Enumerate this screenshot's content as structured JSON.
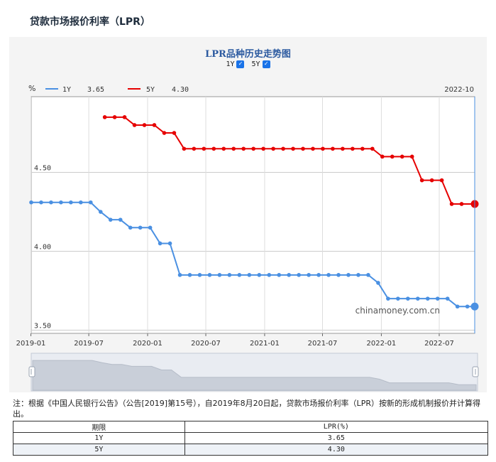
{
  "page_title": "贷款市场报价利率（LPR）",
  "chart": {
    "title": "LPR品种历史走势图",
    "toggles": [
      {
        "label": "1Y",
        "checked": true
      },
      {
        "label": "5Y",
        "checked": true
      }
    ],
    "legend": [
      {
        "name": "1Y",
        "value": "3.65",
        "color": "#4a90e2"
      },
      {
        "name": "5Y",
        "value": "4.30",
        "color": "#e60000"
      }
    ],
    "y_unit_label": "%",
    "cursor_date_label": "2022-10",
    "watermark": "chinamoney.com.cn"
  },
  "chart_data": {
    "type": "line",
    "y_ticks": [
      "4.50",
      "4.00",
      "3.50"
    ],
    "y_tick_values": [
      4.5,
      4.0,
      3.5
    ],
    "ylim": [
      3.48,
      4.98
    ],
    "xlim": [
      "2019-01-02",
      "2022-10-20"
    ],
    "x_ticks": [
      "2019-01",
      "2019-07",
      "2020-01",
      "2020-07",
      "2021-01",
      "2021-07",
      "2022-01",
      "2022-07"
    ],
    "series": [
      {
        "name": "1Y",
        "color": "#4a90e2",
        "points": [
          [
            "2019-01-02",
            4.31
          ],
          [
            "2019-02-02",
            4.31
          ],
          [
            "2019-03-05",
            4.31
          ],
          [
            "2019-04-05",
            4.31
          ],
          [
            "2019-05-06",
            4.31
          ],
          [
            "2019-06-06",
            4.31
          ],
          [
            "2019-07-07",
            4.31
          ],
          [
            "2019-08-07",
            4.25
          ],
          [
            "2019-09-07",
            4.2
          ],
          [
            "2019-10-08",
            4.2
          ],
          [
            "2019-11-08",
            4.15
          ],
          [
            "2019-12-09",
            4.15
          ],
          [
            "2020-01-09",
            4.15
          ],
          [
            "2020-02-09",
            4.05
          ],
          [
            "2020-03-11",
            4.05
          ],
          [
            "2020-04-11",
            3.85
          ],
          [
            "2020-05-12",
            3.85
          ],
          [
            "2020-06-12",
            3.85
          ],
          [
            "2020-07-13",
            3.85
          ],
          [
            "2020-08-13",
            3.85
          ],
          [
            "2020-09-13",
            3.85
          ],
          [
            "2020-10-14",
            3.85
          ],
          [
            "2020-11-14",
            3.85
          ],
          [
            "2020-12-15",
            3.85
          ],
          [
            "2021-01-15",
            3.85
          ],
          [
            "2021-02-15",
            3.85
          ],
          [
            "2021-03-18",
            3.85
          ],
          [
            "2021-04-18",
            3.85
          ],
          [
            "2021-05-19",
            3.85
          ],
          [
            "2021-06-19",
            3.85
          ],
          [
            "2021-07-20",
            3.85
          ],
          [
            "2021-08-20",
            3.85
          ],
          [
            "2021-09-20",
            3.85
          ],
          [
            "2021-10-21",
            3.85
          ],
          [
            "2021-11-21",
            3.85
          ],
          [
            "2021-12-22",
            3.8
          ],
          [
            "2022-01-22",
            3.7
          ],
          [
            "2022-02-22",
            3.7
          ],
          [
            "2022-03-25",
            3.7
          ],
          [
            "2022-04-25",
            3.7
          ],
          [
            "2022-05-26",
            3.7
          ],
          [
            "2022-06-26",
            3.7
          ],
          [
            "2022-07-27",
            3.7
          ],
          [
            "2022-08-27",
            3.65
          ],
          [
            "2022-09-27",
            3.65
          ],
          [
            "2022-10-20",
            3.65
          ]
        ]
      },
      {
        "name": "5Y",
        "color": "#e60000",
        "points": [
          [
            "2019-08-20",
            4.85
          ],
          [
            "2019-09-20",
            4.85
          ],
          [
            "2019-10-21",
            4.85
          ],
          [
            "2019-11-21",
            4.8
          ],
          [
            "2019-12-22",
            4.8
          ],
          [
            "2020-01-22",
            4.8
          ],
          [
            "2020-02-22",
            4.75
          ],
          [
            "2020-03-24",
            4.75
          ],
          [
            "2020-04-24",
            4.65
          ],
          [
            "2020-05-25",
            4.65
          ],
          [
            "2020-06-25",
            4.65
          ],
          [
            "2020-07-26",
            4.65
          ],
          [
            "2020-08-26",
            4.65
          ],
          [
            "2020-09-26",
            4.65
          ],
          [
            "2020-10-27",
            4.65
          ],
          [
            "2020-11-27",
            4.65
          ],
          [
            "2020-12-28",
            4.65
          ],
          [
            "2021-01-28",
            4.65
          ],
          [
            "2021-02-28",
            4.65
          ],
          [
            "2021-03-31",
            4.65
          ],
          [
            "2021-05-01",
            4.65
          ],
          [
            "2021-06-01",
            4.65
          ],
          [
            "2021-07-02",
            4.65
          ],
          [
            "2021-08-02",
            4.65
          ],
          [
            "2021-09-02",
            4.65
          ],
          [
            "2021-10-03",
            4.65
          ],
          [
            "2021-11-03",
            4.65
          ],
          [
            "2021-12-04",
            4.65
          ],
          [
            "2022-01-04",
            4.6
          ],
          [
            "2022-02-04",
            4.6
          ],
          [
            "2022-03-07",
            4.6
          ],
          [
            "2022-04-07",
            4.6
          ],
          [
            "2022-05-08",
            4.45
          ],
          [
            "2022-06-08",
            4.45
          ],
          [
            "2022-07-09",
            4.45
          ],
          [
            "2022-08-09",
            4.3
          ],
          [
            "2022-09-09",
            4.3
          ],
          [
            "2022-10-20",
            4.3
          ]
        ]
      }
    ],
    "grid": true
  },
  "note": "注：根据《中国人民银行公告》（公告[2019]第15号），自2019年8月20日起，贷款市场报价利率（LPR）按新的形成机制报价并计算得出。",
  "table": {
    "headers": [
      "期限",
      "LPR(%)"
    ],
    "rows": [
      [
        "1Y",
        "3.65"
      ],
      [
        "5Y",
        "4.30"
      ]
    ]
  }
}
